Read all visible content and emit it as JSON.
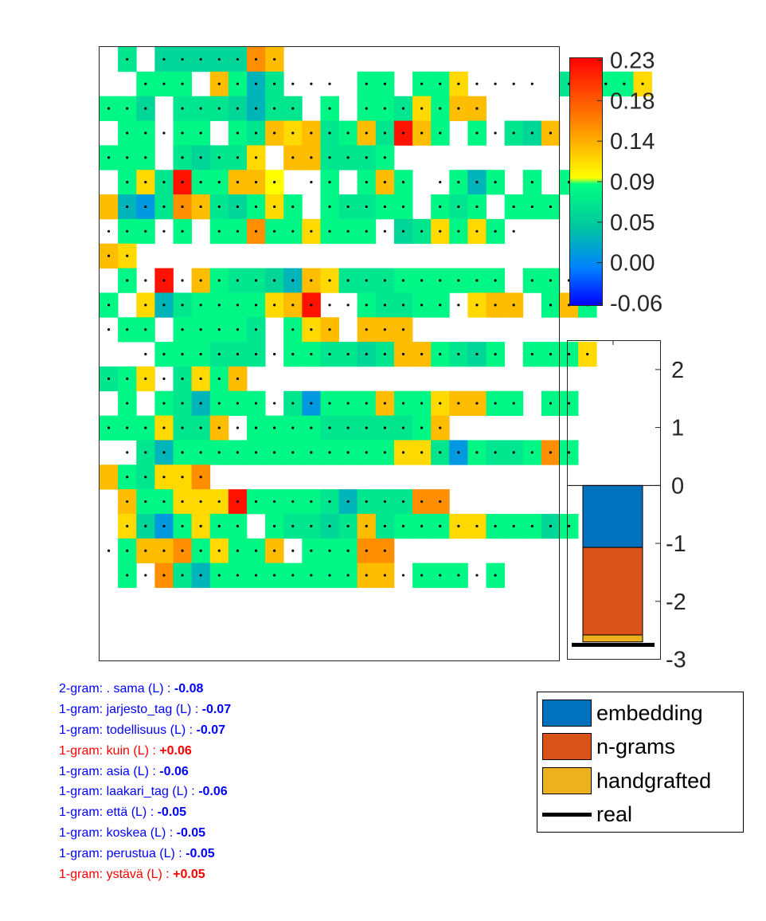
{
  "colors": {
    "embedding": "#0072bd",
    "ngrams": "#d95319",
    "handcrafted": "#edb120",
    "real": "#000000",
    "negative_text": "#0000ff",
    "positive_text": "#ff0000",
    "colormap": [
      "#0000ff",
      "#0080ff",
      "#00c8a0",
      "#00ff80",
      "#ffff00",
      "#ff8000",
      "#ff0000"
    ]
  },
  "chart_data": [
    {
      "type": "heatmap",
      "description_role": "word-level contribution map",
      "n_cols": 25,
      "n_rows": 25,
      "missing": "_",
      "value_levels": {
        "a": 0.0,
        "b": 0.02,
        "c": 0.045,
        "d": 0.06,
        "e": 0.075,
        "f": 0.09,
        "g": 0.11,
        "h": 0.125,
        "i": 0.15,
        "j": 0.22
      },
      "rows": [
        "_.d_.c.c.c.c.c.i.h",
        "__.e.e.e_.h.e.b.d..._.e.e_.e.e.g...._.d..e.e.g",
        ".e.e.c_.d.d.d.c.b.d.d_.e_.e.e.d.g.e.h.h",
        "_.e.e..e.e_.e.d.h.g.h.d.e.h.d.j.h.e_.e..d.c.h",
        ".e.e.e_.d.c.d.d.g_.h.h.d.d.d.e",
        "_.e.g.d.j.e.e.h.h.f_..e_.e.h.e_..e.b.e_.e_.e.e",
        "h.b.a.d.i.h.d.c.e.g.e_.e.d.d.e.e_.e.d.e_.e.e.e",
        "..e.e..e_.e.e.i.e.e.g.e.e.e..c.d.g.e.g.e.",
        ".h.g",
        "_.e..j..h.e.d.d.c.b.h.g.d.d.d.e.e.e.e.e.e_.e.e.",
        ".e_.g.b.d.e.e.e.e.g.h.j...e.d.d.e.e..g.h.h_.e.h.e",
        "..e.e_.e.e.e.e.d_.e.g.h_.h.h.h",
        "__..e.e.e.d.d.d..e.e.d.d.c.d.h.h.e.d.c.e_.e.e.e.g",
        ".d.e.g..d.g.e.h",
        "_.e_.e.d.b.e.e.e..d.a.e.e.e.h.e.e.g.h.h.e.e_.e.e",
        ".e.e.e.g.d.d.h..e.e.e.e.d.d.d.d.d.e.h",
        "_..d.b.e.e.e.e.e.e.e.e.e.e.e.e.g.g.d.a.e.d.d.e.i.e",
        "h.e.d.g.g.i",
        "_.h.e.e.g.g.g.j.e.e.e.e.d.b.d.d.d.i.i",
        "_.g.c.a.e.g.e.e_.e.d.d.c.d.h.d.e.e.e.g.g.e.e.e.c.e",
        "..e.h.h.i.e.g.e.e.h..e.e.e.i.i",
        "_.e..i.d.b.e.e.e.e.e.e.e.e.h.h..e.e.e..e"
      ]
    },
    {
      "type": "bar",
      "stacked": true,
      "ylim": [
        -3,
        2.5
      ],
      "ticks": [
        2,
        1,
        0,
        -1,
        -2,
        -3
      ],
      "tick_labels": [
        "2",
        "1",
        "0",
        "-1",
        "-2",
        "-3"
      ],
      "series": [
        {
          "name": "embedding",
          "values": [
            -1.07
          ]
        },
        {
          "name": "n-grams",
          "values": [
            -1.51
          ]
        },
        {
          "name": "handgrafted",
          "values": [
            -0.12
          ]
        }
      ],
      "real": -2.75,
      "legend": [
        "embedding",
        "n-grams",
        "handgrafted",
        "real"
      ],
      "legend_position": "bottom-right"
    }
  ],
  "colorbar": {
    "tick_labels": [
      "0.23",
      "0.18",
      "0.14",
      "0.09",
      "0.05",
      "0.00",
      "-0.06"
    ]
  },
  "features": [
    {
      "text": "2-gram: . sama (L) : ",
      "value": "-0.08",
      "sign": "neg"
    },
    {
      "text": "1-gram: jarjesto_tag (L) : ",
      "value": "-0.07",
      "sign": "neg"
    },
    {
      "text": "1-gram: todellisuus (L) : ",
      "value": "-0.07",
      "sign": "neg"
    },
    {
      "text": "1-gram: kuin (L) : ",
      "value": "+0.06",
      "sign": "pos"
    },
    {
      "text": "1-gram: asia (L) : ",
      "value": "-0.06",
      "sign": "neg"
    },
    {
      "text": "1-gram: laakari_tag (L) : ",
      "value": "-0.06",
      "sign": "neg"
    },
    {
      "text": "1-gram: että (L) : ",
      "value": "-0.05",
      "sign": "neg"
    },
    {
      "text": "1-gram: koskea (L) : ",
      "value": "-0.05",
      "sign": "neg"
    },
    {
      "text": "1-gram: perustua (L) : ",
      "value": "-0.05",
      "sign": "neg"
    },
    {
      "text": "1-gram: ystävä (L) : ",
      "value": "+0.05",
      "sign": "pos"
    }
  ]
}
